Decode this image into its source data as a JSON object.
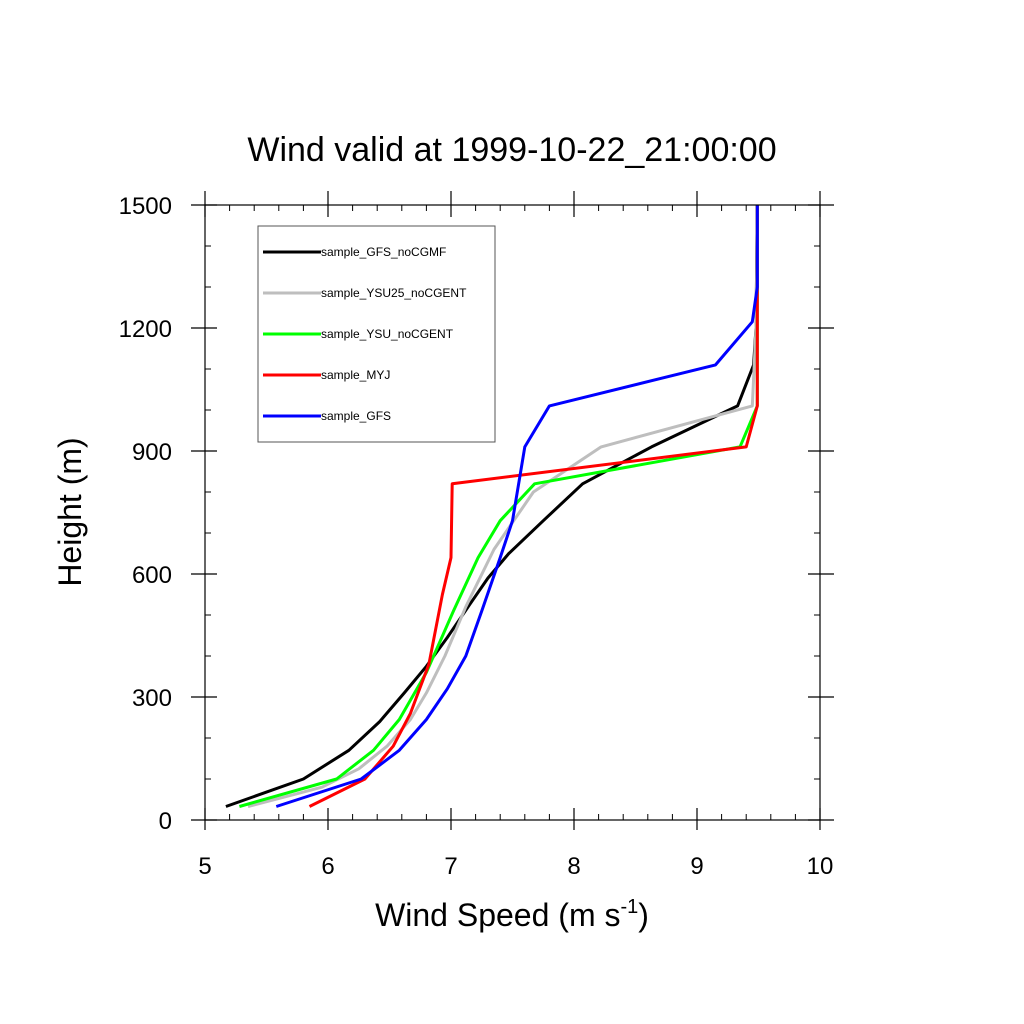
{
  "chart_data": {
    "type": "line",
    "title": "Wind valid at 1999-10-22_21:00:00",
    "xlabel": "Wind Speed (m s",
    "xlabel_superscript": "-1",
    "xlabel_suffix": ")",
    "ylabel": "Height (m)",
    "xlim": [
      5,
      10
    ],
    "ylim": [
      0,
      1500
    ],
    "x_ticks": [
      5,
      6,
      7,
      8,
      9,
      10
    ],
    "y_ticks": [
      0,
      300,
      600,
      900,
      1200,
      1500
    ],
    "grid": false,
    "legend_position": "top-left",
    "series": [
      {
        "name": "sample_GFS_noCGMF",
        "color": "#000000",
        "points": [
          [
            5.17,
            33
          ],
          [
            5.8,
            100
          ],
          [
            6.17,
            170
          ],
          [
            6.42,
            240
          ],
          [
            6.62,
            310
          ],
          [
            6.8,
            375
          ],
          [
            6.97,
            445
          ],
          [
            7.15,
            525
          ],
          [
            7.3,
            590
          ],
          [
            7.47,
            650
          ],
          [
            7.75,
            730
          ],
          [
            8.07,
            820
          ],
          [
            8.63,
            910
          ],
          [
            9.33,
            1010
          ],
          [
            9.46,
            1110
          ],
          [
            9.48,
            1200
          ],
          [
            9.49,
            1500
          ]
        ]
      },
      {
        "name": "sample_YSU25_noCGENT",
        "color": "#bebebe",
        "points": [
          [
            5.35,
            33
          ],
          [
            5.95,
            80
          ],
          [
            6.25,
            125
          ],
          [
            6.48,
            180
          ],
          [
            6.67,
            245
          ],
          [
            6.8,
            310
          ],
          [
            6.95,
            400
          ],
          [
            7.12,
            520
          ],
          [
            7.35,
            660
          ],
          [
            7.67,
            800
          ],
          [
            8.22,
            910
          ],
          [
            9.45,
            1010
          ],
          [
            9.48,
            1200
          ],
          [
            9.49,
            1500
          ]
        ]
      },
      {
        "name": "sample_YSU_noCGENT",
        "color": "#00ff00",
        "points": [
          [
            5.28,
            33
          ],
          [
            6.07,
            100
          ],
          [
            6.37,
            170
          ],
          [
            6.58,
            245
          ],
          [
            6.8,
            360
          ],
          [
            7.02,
            510
          ],
          [
            7.22,
            640
          ],
          [
            7.4,
            730
          ],
          [
            7.68,
            820
          ],
          [
            9.35,
            910
          ],
          [
            9.49,
            1010
          ],
          [
            9.49,
            1200
          ],
          [
            9.49,
            1500
          ]
        ]
      },
      {
        "name": "sample_MYJ",
        "color": "#ff0000",
        "points": [
          [
            5.85,
            33
          ],
          [
            6.3,
            100
          ],
          [
            6.53,
            180
          ],
          [
            6.67,
            260
          ],
          [
            6.82,
            380
          ],
          [
            6.93,
            550
          ],
          [
            7.0,
            640
          ],
          [
            7.01,
            820
          ],
          [
            9.4,
            910
          ],
          [
            9.49,
            1010
          ],
          [
            9.49,
            1200
          ],
          [
            9.49,
            1500
          ]
        ]
      },
      {
        "name": "sample_GFS",
        "color": "#0000ff",
        "points": [
          [
            5.58,
            33
          ],
          [
            6.27,
            100
          ],
          [
            6.58,
            170
          ],
          [
            6.8,
            245
          ],
          [
            6.97,
            320
          ],
          [
            7.12,
            400
          ],
          [
            7.25,
            510
          ],
          [
            7.4,
            640
          ],
          [
            7.5,
            730
          ],
          [
            7.6,
            910
          ],
          [
            7.8,
            1010
          ],
          [
            9.15,
            1110
          ],
          [
            9.45,
            1215
          ],
          [
            9.49,
            1300
          ],
          [
            9.49,
            1500
          ]
        ]
      }
    ]
  }
}
